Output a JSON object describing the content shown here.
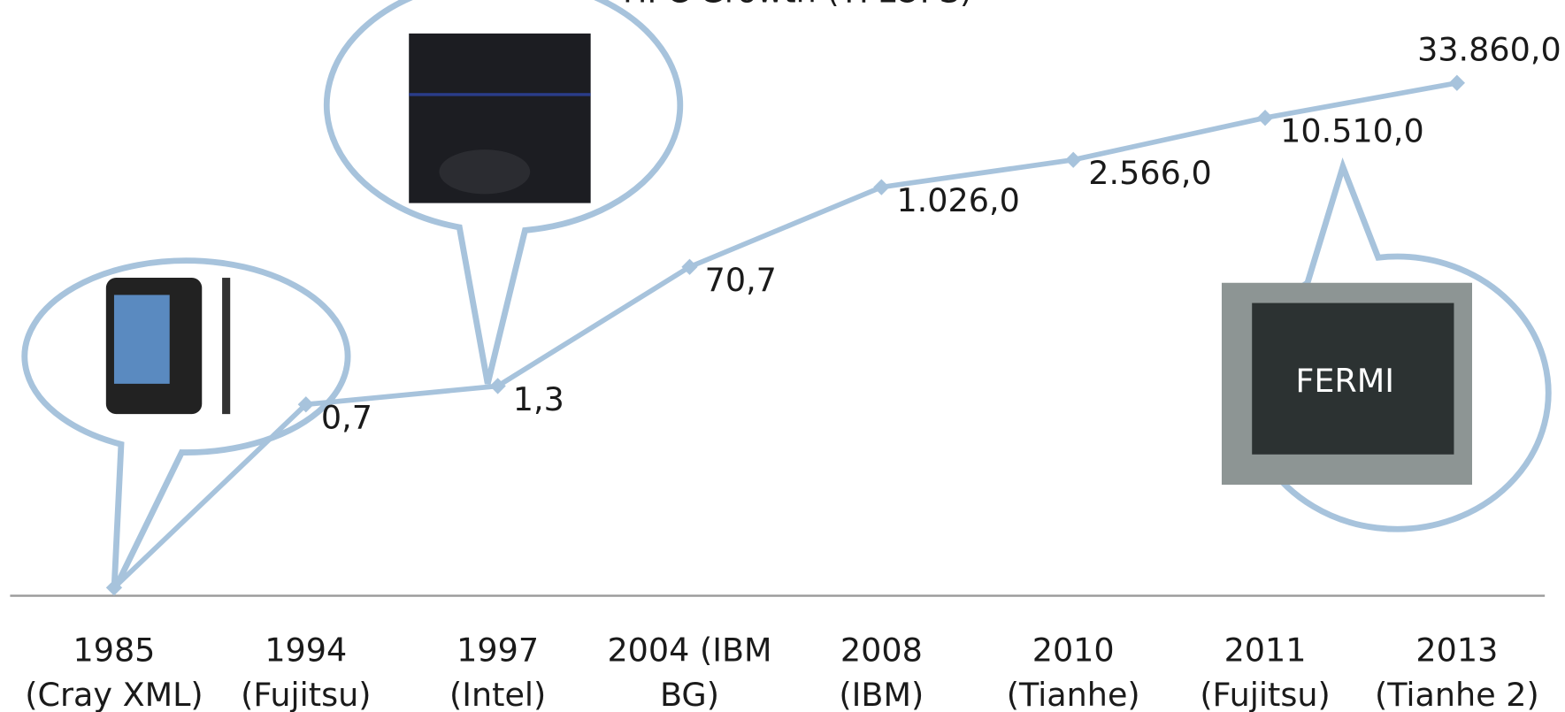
{
  "chart_data": {
    "type": "line",
    "title": "HPC Growth (TFLOPS)",
    "categories": [
      [
        "1985",
        "(Cray XML)"
      ],
      [
        "1994",
        "(Fujitsu)"
      ],
      [
        "1997",
        "(Intel)"
      ],
      [
        "2004 (IBM",
        "BG)"
      ],
      [
        "2008",
        "(IBM)"
      ],
      [
        "2010",
        "(Tianhe)"
      ],
      [
        "2011",
        "(Fujitsu)"
      ],
      [
        "2013",
        "(Tianhe 2)"
      ]
    ],
    "values": [
      0.0015,
      0.7,
      1.3,
      70.7,
      1026,
      2566,
      10510,
      33860
    ],
    "value_labels": [
      null,
      "0,7",
      "1,3",
      "70,7",
      "1.026,0",
      "2.566,0",
      "10.510,0",
      "33.860,0"
    ],
    "color": "#a7c3dc",
    "log_scale": true,
    "ylim": [
      0.0015,
      100000
    ],
    "annotations": [
      "FERMI"
    ]
  }
}
